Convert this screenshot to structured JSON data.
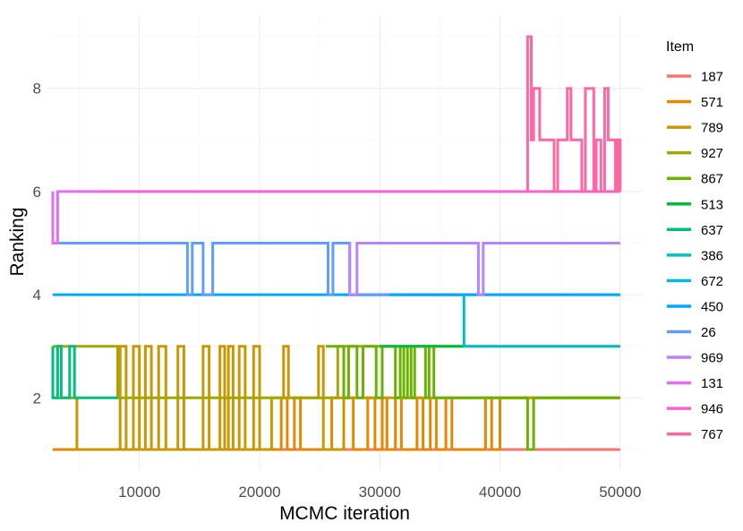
{
  "chart_data": {
    "type": "line",
    "title": "",
    "xlabel": "MCMC iteration",
    "ylabel": "Ranking",
    "xlim": [
      2500,
      51800
    ],
    "ylim": [
      0.6,
      9.4
    ],
    "x_ticks": [
      10000,
      20000,
      30000,
      40000,
      50000
    ],
    "x_minor_ticks": [
      5000,
      15000,
      25000,
      35000,
      45000
    ],
    "y_ticks": [
      2,
      4,
      6,
      8
    ],
    "y_minor_ticks": [
      1,
      3,
      5,
      7,
      9
    ],
    "grid": true,
    "legend": {
      "title": "Item",
      "position": "right"
    },
    "series": [
      {
        "name": "187",
        "color": "#F8766D",
        "points": [
          [
            2800,
            1
          ],
          [
            50000,
            1
          ]
        ]
      },
      {
        "name": "571",
        "color": "#E58700",
        "points": [
          [
            2800,
            1
          ],
          [
            21800,
            1
          ],
          [
            21800,
            2
          ],
          [
            22300,
            2
          ],
          [
            22300,
            1
          ],
          [
            22900,
            1
          ],
          [
            22900,
            2
          ],
          [
            23400,
            2
          ],
          [
            23400,
            1
          ],
          [
            26000,
            1
          ],
          [
            26000,
            2
          ],
          [
            27800,
            2
          ],
          [
            27800,
            1
          ],
          [
            29000,
            1
          ],
          [
            29000,
            2
          ],
          [
            29600,
            2
          ],
          [
            29600,
            1
          ],
          [
            30200,
            1
          ],
          [
            30200,
            2
          ],
          [
            30600,
            2
          ],
          [
            30600,
            1
          ],
          [
            31300,
            1
          ],
          [
            31300,
            2
          ],
          [
            31800,
            2
          ],
          [
            31800,
            1
          ],
          [
            33100,
            1
          ],
          [
            33100,
            2
          ],
          [
            33600,
            2
          ],
          [
            33600,
            1
          ],
          [
            34200,
            1
          ],
          [
            34200,
            2
          ],
          [
            34700,
            2
          ],
          [
            34700,
            1
          ],
          [
            35500,
            1
          ],
          [
            35500,
            2
          ],
          [
            36000,
            2
          ],
          [
            36000,
            1
          ],
          [
            38800,
            1
          ],
          [
            38800,
            2
          ],
          [
            39300,
            2
          ],
          [
            39300,
            1
          ],
          [
            40000,
            1
          ],
          [
            40000,
            2
          ],
          [
            50000,
            2
          ]
        ]
      },
      {
        "name": "789",
        "color": "#C99800",
        "points": [
          [
            2800,
            2
          ],
          [
            4800,
            2
          ],
          [
            4800,
            1
          ],
          [
            8400,
            1
          ],
          [
            8400,
            3
          ],
          [
            8900,
            3
          ],
          [
            8900,
            1
          ],
          [
            9500,
            1
          ],
          [
            9500,
            3
          ],
          [
            10000,
            3
          ],
          [
            10000,
            1
          ],
          [
            10500,
            1
          ],
          [
            10500,
            3
          ],
          [
            11000,
            3
          ],
          [
            11000,
            1
          ],
          [
            11600,
            1
          ],
          [
            11600,
            3
          ],
          [
            12200,
            3
          ],
          [
            12200,
            1
          ],
          [
            13200,
            1
          ],
          [
            13200,
            3
          ],
          [
            13700,
            3
          ],
          [
            13700,
            1
          ],
          [
            15300,
            1
          ],
          [
            15300,
            3
          ],
          [
            15800,
            3
          ],
          [
            15800,
            1
          ],
          [
            16700,
            1
          ],
          [
            16700,
            3
          ],
          [
            17100,
            3
          ],
          [
            17100,
            1
          ],
          [
            17400,
            1
          ],
          [
            17400,
            3
          ],
          [
            17800,
            3
          ],
          [
            17800,
            1
          ],
          [
            18300,
            1
          ],
          [
            18300,
            3
          ],
          [
            18800,
            3
          ],
          [
            18800,
            1
          ],
          [
            19500,
            1
          ],
          [
            19500,
            3
          ],
          [
            20000,
            3
          ],
          [
            20000,
            1
          ],
          [
            21000,
            1
          ],
          [
            21000,
            2
          ],
          [
            22000,
            2
          ],
          [
            22000,
            3
          ],
          [
            22400,
            3
          ],
          [
            22400,
            2
          ],
          [
            24900,
            2
          ],
          [
            24900,
            3
          ],
          [
            25300,
            3
          ],
          [
            25300,
            1
          ],
          [
            27000,
            1
          ],
          [
            27000,
            2
          ],
          [
            50000,
            2
          ]
        ]
      },
      {
        "name": "927",
        "color": "#A3A500",
        "points": [
          [
            2800,
            3
          ],
          [
            8200,
            3
          ],
          [
            8200,
            2
          ],
          [
            26500,
            2
          ],
          [
            26500,
            3
          ],
          [
            50000,
            3
          ]
        ]
      },
      {
        "name": "867",
        "color": "#6BB100",
        "points": [
          [
            25500,
            3
          ],
          [
            27000,
            3
          ],
          [
            27000,
            2
          ],
          [
            27400,
            2
          ],
          [
            27400,
            3
          ],
          [
            28100,
            3
          ],
          [
            28100,
            2
          ],
          [
            28600,
            2
          ],
          [
            28600,
            3
          ],
          [
            29700,
            3
          ],
          [
            29700,
            2
          ],
          [
            30200,
            2
          ],
          [
            30200,
            3
          ],
          [
            31300,
            3
          ],
          [
            31300,
            2
          ],
          [
            31700,
            2
          ],
          [
            31700,
            3
          ],
          [
            32000,
            3
          ],
          [
            32000,
            2
          ],
          [
            32300,
            2
          ],
          [
            32300,
            3
          ],
          [
            32600,
            3
          ],
          [
            32600,
            2
          ],
          [
            32900,
            2
          ],
          [
            32900,
            3
          ],
          [
            33800,
            3
          ],
          [
            33800,
            2
          ],
          [
            34100,
            2
          ],
          [
            34100,
            3
          ],
          [
            34500,
            3
          ],
          [
            34500,
            2
          ],
          [
            42300,
            2
          ],
          [
            42300,
            1
          ],
          [
            42800,
            1
          ],
          [
            42800,
            2
          ],
          [
            50000,
            2
          ]
        ]
      },
      {
        "name": "513",
        "color": "#00BA38",
        "points": [
          [
            30000,
            3
          ],
          [
            37000,
            3
          ]
        ]
      },
      {
        "name": "637",
        "color": "#00BF7D",
        "points": [
          [
            2800,
            3
          ],
          [
            2800,
            2
          ],
          [
            3200,
            2
          ],
          [
            3200,
            3
          ],
          [
            3500,
            3
          ],
          [
            3500,
            2
          ],
          [
            4200,
            2
          ],
          [
            4200,
            3
          ],
          [
            4600,
            3
          ],
          [
            4600,
            2
          ],
          [
            8200,
            2
          ]
        ]
      },
      {
        "name": "386",
        "color": "#00BFC4",
        "points": [
          [
            30800,
            4
          ],
          [
            37000,
            4
          ],
          [
            37000,
            3
          ],
          [
            50000,
            3
          ]
        ]
      },
      {
        "name": "672",
        "color": "#00B8E7",
        "points": [
          [
            27000,
            4
          ],
          [
            50000,
            4
          ]
        ]
      },
      {
        "name": "450",
        "color": "#00A9FF",
        "points": [
          [
            2800,
            4
          ],
          [
            50000,
            4
          ]
        ]
      },
      {
        "name": "26",
        "color": "#619CFF",
        "points": [
          [
            2800,
            5
          ],
          [
            14000,
            5
          ],
          [
            14000,
            4
          ],
          [
            14400,
            4
          ],
          [
            14400,
            5
          ],
          [
            15300,
            5
          ],
          [
            15300,
            4
          ],
          [
            16100,
            4
          ],
          [
            16100,
            5
          ],
          [
            25700,
            5
          ],
          [
            25700,
            4
          ],
          [
            26100,
            4
          ],
          [
            26100,
            5
          ],
          [
            27500,
            5
          ],
          [
            27500,
            4
          ],
          [
            30800,
            4
          ]
        ]
      },
      {
        "name": "969",
        "color": "#B983FF",
        "points": [
          [
            27500,
            5
          ],
          [
            27500,
            4
          ],
          [
            28100,
            4
          ],
          [
            28100,
            5
          ],
          [
            38200,
            5
          ],
          [
            38200,
            4
          ],
          [
            38600,
            4
          ],
          [
            38600,
            5
          ],
          [
            50000,
            5
          ]
        ]
      },
      {
        "name": "131",
        "color": "#E76BF3",
        "points": [
          [
            2800,
            6
          ],
          [
            2800,
            5
          ],
          [
            3200,
            5
          ],
          [
            3200,
            6
          ],
          [
            6500,
            6
          ]
        ]
      },
      {
        "name": "946",
        "color": "#FD61D1",
        "points": [
          [
            6500,
            6
          ],
          [
            50000,
            6
          ]
        ]
      },
      {
        "name": "767",
        "color": "#FF67A4",
        "points": [
          [
            42300,
            6
          ],
          [
            42300,
            9
          ],
          [
            42600,
            9
          ],
          [
            42600,
            7
          ],
          [
            42800,
            7
          ],
          [
            42800,
            8
          ],
          [
            43300,
            8
          ],
          [
            43300,
            7
          ],
          [
            44500,
            7
          ],
          [
            44500,
            6
          ],
          [
            44800,
            6
          ],
          [
            44800,
            7
          ],
          [
            45600,
            7
          ],
          [
            45600,
            8
          ],
          [
            45900,
            8
          ],
          [
            45900,
            7
          ],
          [
            46800,
            7
          ],
          [
            46800,
            6
          ],
          [
            47100,
            6
          ],
          [
            47100,
            8
          ],
          [
            47800,
            8
          ],
          [
            47800,
            6
          ],
          [
            48000,
            6
          ],
          [
            48000,
            7
          ],
          [
            48400,
            7
          ],
          [
            48400,
            6
          ],
          [
            48700,
            6
          ],
          [
            48700,
            8
          ],
          [
            49000,
            8
          ],
          [
            49000,
            7
          ],
          [
            49600,
            7
          ],
          [
            49600,
            6
          ],
          [
            49800,
            6
          ],
          [
            49800,
            7
          ],
          [
            50000,
            7
          ],
          [
            50000,
            6
          ]
        ]
      }
    ]
  }
}
